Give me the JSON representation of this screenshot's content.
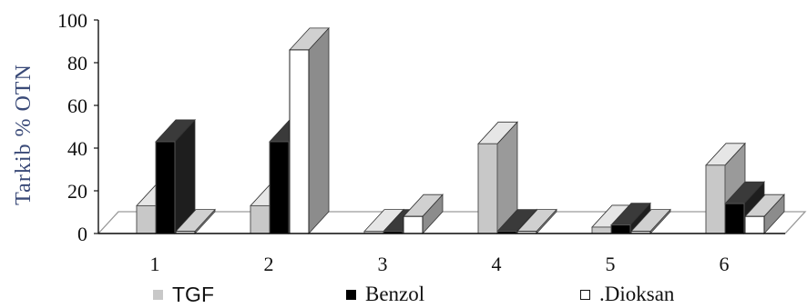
{
  "chart_data": {
    "type": "bar",
    "ylabel": "Tarkib % OTN",
    "ylim": [
      0,
      100
    ],
    "yticks": [
      "0",
      "20",
      "40",
      "60",
      "80",
      "100"
    ],
    "categories": [
      "1",
      "2",
      "3",
      "4",
      "5",
      "6"
    ],
    "series": [
      {
        "name": "TGF",
        "color": "#c8c8c8",
        "side": "#9a9a9a",
        "top": "#e6e6e6",
        "values": [
          13,
          13,
          1,
          42,
          3,
          32
        ]
      },
      {
        "name": "Benzol",
        "color": "#000000",
        "side": "#1e1e1e",
        "top": "#3a3a3a",
        "values": [
          43,
          43,
          1,
          1,
          4,
          14
        ]
      },
      {
        "name": ".Dioksan",
        "color": "#ffffff",
        "side": "#8c8c8c",
        "top": "#d0d0d0",
        "values": [
          1,
          86,
          8,
          1,
          1,
          8
        ]
      }
    ],
    "legend": "bottom",
    "style": "3d-clustered-column"
  }
}
